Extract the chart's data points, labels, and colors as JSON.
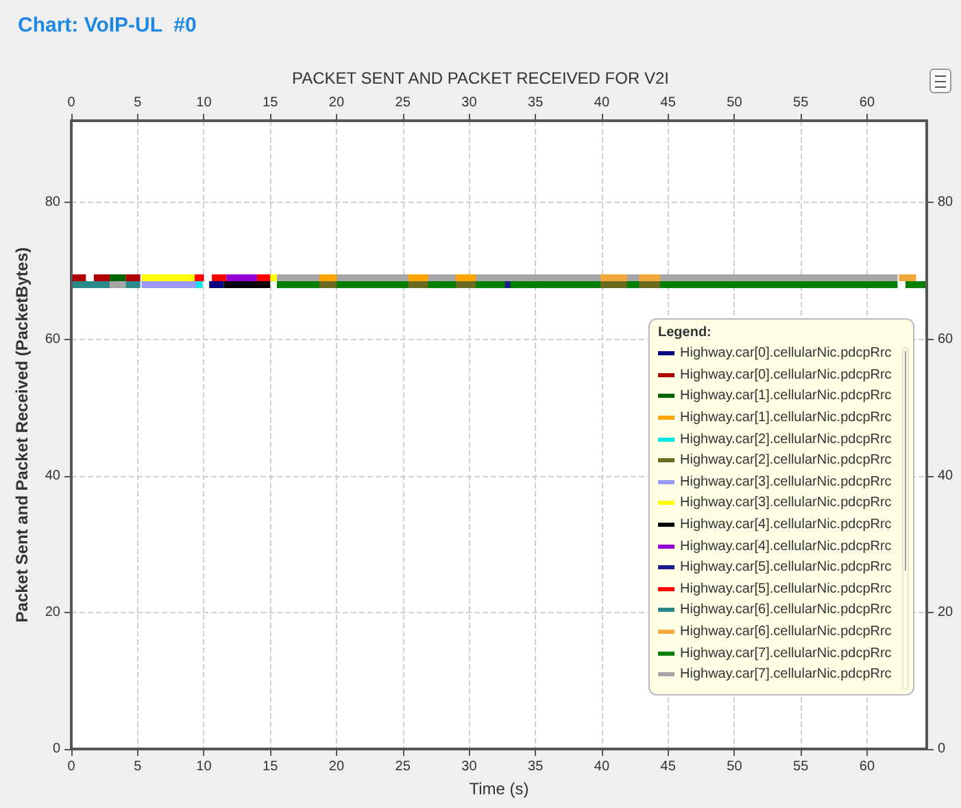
{
  "chart_data": {
    "type": "line",
    "title": "Chart: VoIP-UL  #0",
    "subtitle": "PACKET SENT AND PACKET RECEIVED FOR V2I",
    "xlabel": "Time (s)",
    "ylabel": "Packet Sent and Packet Received (PacketBytes)",
    "legend_title": "Legend:",
    "xlim": [
      0,
      64.5
    ],
    "xticks": [
      0,
      5,
      10,
      15,
      20,
      25,
      30,
      35,
      40,
      45,
      50,
      55,
      60
    ],
    "x2lim": [
      0,
      64.5
    ],
    "x2ticks": [
      0,
      5,
      10,
      15,
      20,
      25,
      30,
      35,
      40,
      45,
      50,
      55,
      60
    ],
    "ylim": [
      0,
      92
    ],
    "yticks": [
      0,
      20,
      40,
      60,
      80
    ],
    "y2lim": [
      0,
      92
    ],
    "y2ticks": [
      0,
      20,
      40,
      60,
      80
    ],
    "grid": true,
    "legend": "right",
    "marker": "none",
    "line_style": "solid",
    "series": [
      {
        "name": "Highway.car[0].cellularNic.pdcpRrc",
        "color": "#000080",
        "x": [
          10.4,
          11.5
        ],
        "values": [
          68,
          68
        ]
      },
      {
        "name": "Highway.car[0].cellularNic.pdcpRrc",
        "color": "#b00000",
        "x": [
          0.1,
          1.1,
          1.4,
          1.7,
          2.9,
          3.5,
          4.1,
          5.2
        ],
        "values": [
          69,
          69,
          null,
          69,
          69,
          null,
          69,
          69
        ]
      },
      {
        "name": "Highway.car[1].cellularNic.pdcpRrc",
        "color": "#006400",
        "x": [
          2.9,
          4.1
        ],
        "values": [
          69,
          69
        ]
      },
      {
        "name": "Highway.car[1].cellularNic.pdcpRrc",
        "color": "#ffa500",
        "x": [
          18.7,
          20,
          22.7,
          25.4,
          26.9,
          28,
          29,
          30.5
        ],
        "values": [
          69,
          69,
          null,
          69,
          69,
          null,
          69,
          69
        ]
      },
      {
        "name": "Highway.car[2].cellularNic.pdcpRrc",
        "color": "#00e5e5",
        "x": [
          9.4,
          9.9
        ],
        "values": [
          68,
          68
        ]
      },
      {
        "name": "Highway.car[2].cellularNic.pdcpRrc",
        "color": "#6b6b1f",
        "x": [
          18.7,
          20,
          22.7,
          25.4,
          26.9,
          28,
          29,
          30.5,
          35,
          39.9,
          41.9,
          42.3,
          42.8,
          44.4
        ],
        "values": [
          68,
          68,
          null,
          68,
          68,
          null,
          68,
          68,
          null,
          68,
          68,
          null,
          68,
          68
        ]
      },
      {
        "name": "Highway.car[3].cellularNic.pdcpRrc",
        "color": "#9999ff",
        "x": [
          5.3,
          9.4
        ],
        "values": [
          68,
          68
        ]
      },
      {
        "name": "Highway.car[3].cellularNic.pdcpRrc",
        "color": "#ffff00",
        "x": [
          5.3,
          9.3,
          12,
          15,
          15.5
        ],
        "values": [
          69,
          69,
          null,
          69,
          69
        ]
      },
      {
        "name": "Highway.car[4].cellularNic.pdcpRrc",
        "color": "#000000",
        "x": [
          11.5,
          15
        ],
        "values": [
          68,
          68
        ]
      },
      {
        "name": "Highway.car[4].cellularNic.pdcpRrc",
        "color": "#9400d3",
        "x": [
          11.7,
          14
        ],
        "values": [
          69,
          69
        ]
      },
      {
        "name": "Highway.car[5].cellularNic.pdcpRrc",
        "color": "#1a1a8c",
        "x": [
          32.7,
          33.1
        ],
        "values": [
          68,
          68
        ]
      },
      {
        "name": "Highway.car[5].cellularNic.pdcpRrc",
        "color": "#ff0000",
        "x": [
          9.3,
          10,
          10.3,
          10.6,
          11.7,
          12.8,
          14,
          15
        ],
        "values": [
          69,
          69,
          null,
          69,
          69,
          null,
          69,
          69
        ]
      },
      {
        "name": "Highway.car[6].cellularNic.pdcpRrc",
        "color": "#2a8a8a",
        "x": [
          0.1,
          2.9,
          3.5,
          4.1,
          5.2
        ],
        "values": [
          68,
          68,
          null,
          68,
          68
        ]
      },
      {
        "name": "Highway.car[6].cellularNic.pdcpRrc",
        "color": "#f2a93b",
        "x": [
          39.9,
          41.9,
          42.3,
          42.8,
          44.4,
          53,
          62.4,
          63.7
        ],
        "values": [
          69,
          69,
          null,
          69,
          69,
          null,
          69,
          69
        ]
      },
      {
        "name": "Highway.car[7].cellularNic.pdcpRrc",
        "color": "#008000",
        "x": [
          15.5,
          62.3,
          62.6,
          62.9,
          64.4
        ],
        "values": [
          68,
          68,
          null,
          68,
          68
        ]
      },
      {
        "name": "Highway.car[7].cellularNic.pdcpRrc",
        "color": "#a6a6a6",
        "x": [
          2.9,
          4.1,
          9.7,
          15.5,
          62.3
        ],
        "values": [
          68,
          68,
          null,
          69,
          69
        ]
      }
    ]
  }
}
